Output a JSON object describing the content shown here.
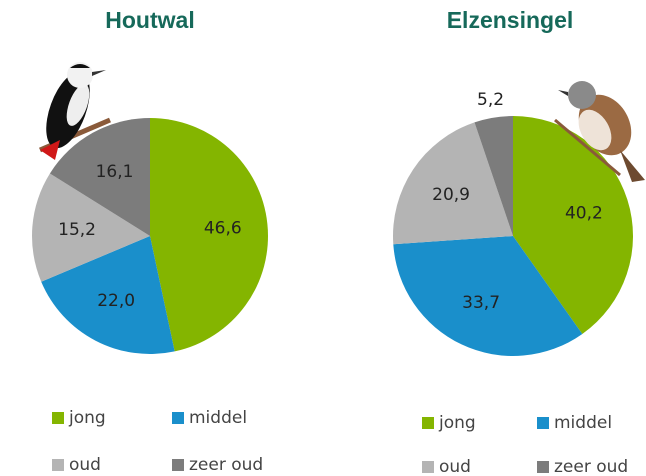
{
  "chart_data": [
    {
      "type": "pie",
      "title": "Houtwal",
      "categories": [
        "jong",
        "middel",
        "oud",
        "zeer oud"
      ],
      "values": [
        46.6,
        22.0,
        15.2,
        16.1
      ],
      "value_labels": [
        "46,6",
        "22,0",
        "15,2",
        "16,1"
      ],
      "colors": [
        "#84b500",
        "#1a8fcb",
        "#b4b4b4",
        "#7c7c7c"
      ]
    },
    {
      "type": "pie",
      "title": "Elzensingel",
      "categories": [
        "jong",
        "middel",
        "oud",
        "zeer oud"
      ],
      "values": [
        40.2,
        33.7,
        20.9,
        5.2
      ],
      "value_labels": [
        "40,2",
        "33,7",
        "20,9",
        "5,2"
      ],
      "colors": [
        "#84b500",
        "#1a8fcb",
        "#b4b4b4",
        "#7c7c7c"
      ]
    }
  ]
}
